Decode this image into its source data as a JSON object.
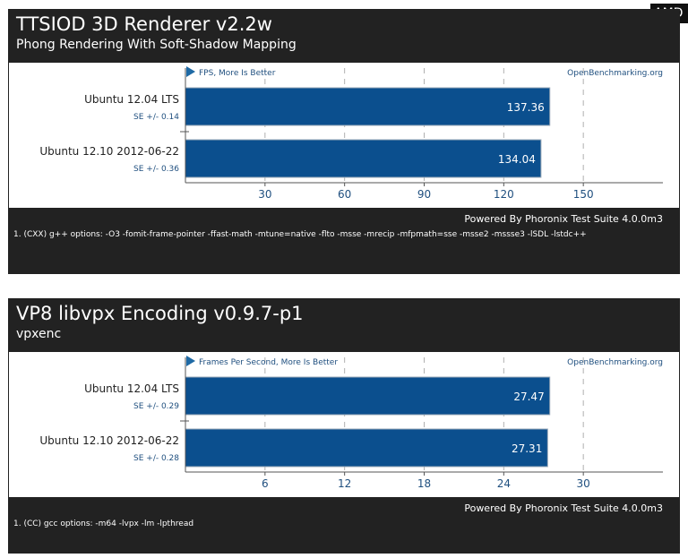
{
  "badge": "AMD",
  "powered_by": "Powered By Phoronix Test Suite 4.0.0m3",
  "watermark": "OpenBenchmarking.org",
  "charts": [
    {
      "title": "TTSIOD 3D Renderer v2.2w",
      "subtitle": "Phong Rendering With Soft-Shadow Mapping",
      "note": "1. (CXX) g++ options: -O3 -fomit-frame-pointer -ffast-math -mtune=native -flto -msse -mrecip -mfpmath=sse -msse2 -mssse3 -lSDL -lstdc++"
    },
    {
      "title": "VP8 libvpx Encoding v0.9.7-p1",
      "subtitle": "vpxenc",
      "note": "1. (CC) gcc options: -m64 -lvpx -lm -lpthread"
    }
  ],
  "chart_data": [
    {
      "type": "bar",
      "orientation": "horizontal",
      "title": "TTSIOD 3D Renderer v2.2w",
      "subtitle": "Phong Rendering With Soft-Shadow Mapping",
      "ylabel": "FPS, More Is Better",
      "categories": [
        "Ubuntu 12.04 LTS",
        "Ubuntu 12.10 2012-06-22"
      ],
      "values": [
        137.36,
        134.04
      ],
      "value_labels": [
        "137.36",
        "134.04"
      ],
      "errors": [
        "SE +/- 0.14",
        "SE +/- 0.36"
      ],
      "ticks": [
        30,
        60,
        90,
        120,
        150
      ],
      "xlim": [
        0,
        180
      ],
      "bar_color": "#0b4f8e"
    },
    {
      "type": "bar",
      "orientation": "horizontal",
      "title": "VP8 libvpx Encoding v0.9.7-p1",
      "subtitle": "vpxenc",
      "ylabel": "Frames Per Second, More Is Better",
      "categories": [
        "Ubuntu 12.04 LTS",
        "Ubuntu 12.10 2012-06-22"
      ],
      "values": [
        27.47,
        27.31
      ],
      "value_labels": [
        "27.47",
        "27.31"
      ],
      "errors": [
        "SE +/- 0.29",
        "SE +/- 0.28"
      ],
      "ticks": [
        6,
        12,
        18,
        24,
        30
      ],
      "xlim": [
        0,
        36
      ],
      "bar_color": "#0b4f8e"
    }
  ]
}
